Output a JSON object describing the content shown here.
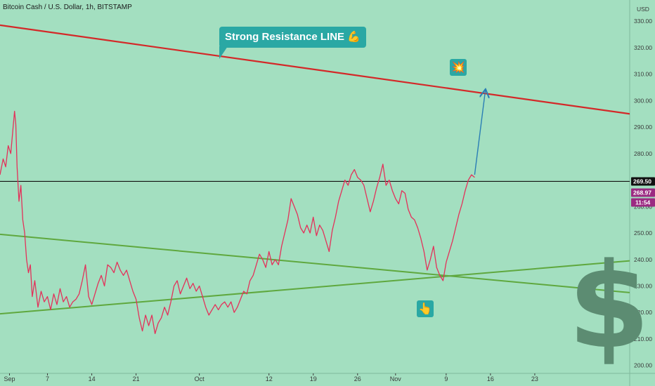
{
  "header": {
    "symbol_line": "Bitcoin Cash / U.S. Dollar, 1h, BITSTAMP"
  },
  "chart_data": {
    "type": "line",
    "title": "Bitcoin Cash / U.S. Dollar, 1h, BITSTAMP",
    "currency_label": "USD",
    "y_range": [
      197,
      338
    ],
    "y_ticks": [
      200,
      210,
      220,
      230,
      240,
      250,
      260,
      270,
      280,
      290,
      300,
      310,
      320,
      330
    ],
    "y_tick_labels": [
      "200.00",
      "210.00",
      "220.00",
      "230.00",
      "240.00",
      "250.00",
      "260.00",
      "270.00",
      "280.00",
      "290.00",
      "300.00",
      "310.00",
      "320.00",
      "330.00"
    ],
    "x_labels": [
      {
        "day": 0,
        "label": "Sep"
      },
      {
        "day": 6,
        "label": "7"
      },
      {
        "day": 13,
        "label": "14"
      },
      {
        "day": 20,
        "label": "21"
      },
      {
        "day": 30,
        "label": "Oct"
      },
      {
        "day": 41,
        "label": "12"
      },
      {
        "day": 48,
        "label": "19"
      },
      {
        "day": 55,
        "label": "26"
      },
      {
        "day": 61,
        "label": "Nov"
      },
      {
        "day": 69,
        "label": "9"
      },
      {
        "day": 76,
        "label": "16"
      },
      {
        "day": 83,
        "label": "23"
      }
    ],
    "x_range_days": [
      -1.5,
      98
    ],
    "price_series": {
      "name": "BCHUSD",
      "color": "#e3315a",
      "points": [
        [
          -1.5,
          272
        ],
        [
          -1,
          278
        ],
        [
          -0.6,
          275
        ],
        [
          -0.2,
          283
        ],
        [
          0.2,
          280
        ],
        [
          0.5,
          288
        ],
        [
          0.8,
          296
        ],
        [
          1.0,
          291
        ],
        [
          1.2,
          275
        ],
        [
          1.5,
          262
        ],
        [
          1.8,
          268
        ],
        [
          2.1,
          255
        ],
        [
          2.4,
          250
        ],
        [
          2.7,
          240
        ],
        [
          3.0,
          235
        ],
        [
          3.3,
          238
        ],
        [
          3.6,
          226
        ],
        [
          4.0,
          232
        ],
        [
          4.5,
          222
        ],
        [
          5.0,
          228
        ],
        [
          5.5,
          224
        ],
        [
          6.0,
          226
        ],
        [
          6.5,
          221
        ],
        [
          7.0,
          227
        ],
        [
          7.5,
          223
        ],
        [
          8.0,
          229
        ],
        [
          8.5,
          224
        ],
        [
          9.0,
          226
        ],
        [
          9.5,
          222
        ],
        [
          10.0,
          224
        ],
        [
          10.5,
          225
        ],
        [
          11.0,
          227
        ],
        [
          11.5,
          232
        ],
        [
          12.0,
          238
        ],
        [
          12.5,
          226
        ],
        [
          13.0,
          223
        ],
        [
          13.5,
          227
        ],
        [
          14.0,
          231
        ],
        [
          14.5,
          234
        ],
        [
          15.0,
          230
        ],
        [
          15.5,
          238
        ],
        [
          16.0,
          237
        ],
        [
          16.5,
          235
        ],
        [
          17.0,
          239
        ],
        [
          17.5,
          236
        ],
        [
          18.0,
          234
        ],
        [
          18.5,
          236
        ],
        [
          19.0,
          232
        ],
        [
          19.5,
          228
        ],
        [
          20.0,
          225
        ],
        [
          20.5,
          218
        ],
        [
          21.0,
          213
        ],
        [
          21.5,
          219
        ],
        [
          22.0,
          215
        ],
        [
          22.5,
          219
        ],
        [
          23.0,
          212
        ],
        [
          23.5,
          216
        ],
        [
          24.0,
          218
        ],
        [
          24.5,
          222
        ],
        [
          25.0,
          219
        ],
        [
          25.5,
          224
        ],
        [
          26.0,
          230
        ],
        [
          26.5,
          232
        ],
        [
          27.0,
          227
        ],
        [
          27.5,
          230
        ],
        [
          28.0,
          233
        ],
        [
          28.5,
          229
        ],
        [
          29.0,
          231
        ],
        [
          29.5,
          228
        ],
        [
          30.0,
          230
        ],
        [
          30.5,
          226
        ],
        [
          31.0,
          222
        ],
        [
          31.5,
          219
        ],
        [
          32.0,
          221
        ],
        [
          32.5,
          223
        ],
        [
          33.0,
          221
        ],
        [
          33.5,
          223
        ],
        [
          34.0,
          224
        ],
        [
          34.5,
          222
        ],
        [
          35.0,
          224
        ],
        [
          35.5,
          220
        ],
        [
          36.0,
          222
        ],
        [
          36.5,
          225
        ],
        [
          37.0,
          228
        ],
        [
          37.5,
          227
        ],
        [
          38.0,
          232
        ],
        [
          38.5,
          234
        ],
        [
          39.0,
          238
        ],
        [
          39.5,
          242
        ],
        [
          40.0,
          240
        ],
        [
          40.5,
          237
        ],
        [
          41.0,
          243
        ],
        [
          41.5,
          238
        ],
        [
          42.0,
          240
        ],
        [
          42.5,
          238
        ],
        [
          43.0,
          245
        ],
        [
          43.5,
          250
        ],
        [
          44.0,
          255
        ],
        [
          44.5,
          263
        ],
        [
          45.0,
          260
        ],
        [
          45.5,
          257
        ],
        [
          46.0,
          252
        ],
        [
          46.5,
          250
        ],
        [
          47.0,
          253
        ],
        [
          47.5,
          250
        ],
        [
          48.0,
          256
        ],
        [
          48.5,
          249
        ],
        [
          49.0,
          253
        ],
        [
          49.5,
          251
        ],
        [
          50.0,
          247
        ],
        [
          50.5,
          243
        ],
        [
          51.0,
          251
        ],
        [
          51.5,
          256
        ],
        [
          52.0,
          262
        ],
        [
          52.5,
          266
        ],
        [
          53.0,
          270
        ],
        [
          53.5,
          268
        ],
        [
          54.0,
          272
        ],
        [
          54.5,
          274
        ],
        [
          55.0,
          271
        ],
        [
          55.5,
          270
        ],
        [
          56.0,
          268
        ],
        [
          56.5,
          263
        ],
        [
          57.0,
          258
        ],
        [
          57.5,
          262
        ],
        [
          58.0,
          267
        ],
        [
          58.5,
          271
        ],
        [
          59.0,
          276
        ],
        [
          59.5,
          268
        ],
        [
          60.0,
          270
        ],
        [
          60.5,
          266
        ],
        [
          61.0,
          263
        ],
        [
          61.5,
          261
        ],
        [
          62.0,
          266
        ],
        [
          62.5,
          265
        ],
        [
          63.0,
          259
        ],
        [
          63.5,
          256
        ],
        [
          64.0,
          255
        ],
        [
          64.5,
          252
        ],
        [
          65.0,
          248
        ],
        [
          65.5,
          243
        ],
        [
          66.0,
          236
        ],
        [
          66.5,
          240
        ],
        [
          67.0,
          245
        ],
        [
          67.5,
          237
        ],
        [
          68.0,
          234
        ],
        [
          68.5,
          232
        ],
        [
          69.0,
          239
        ],
        [
          69.5,
          243
        ],
        [
          70.0,
          247
        ],
        [
          70.5,
          252
        ],
        [
          71.0,
          257
        ],
        [
          71.5,
          261
        ],
        [
          72.0,
          266
        ],
        [
          72.5,
          270
        ],
        [
          73.0,
          272
        ],
        [
          73.5,
          271
        ]
      ]
    },
    "horizontal_line": {
      "value": 269.5,
      "label": "269.50",
      "color": "#111111"
    },
    "last_price": {
      "value": 268.97,
      "label": "268.97",
      "color": "#9b2a82"
    },
    "countdown": {
      "label": "11:54",
      "color": "#9b2a82"
    },
    "resistance_line": {
      "color": "#d42828",
      "from": [
        -1.5,
        328.5
      ],
      "to": [
        98,
        295
      ]
    },
    "support_lines": [
      {
        "color": "#5fa83e",
        "from": [
          -1.5,
          249.5
        ],
        "to": [
          98,
          227.5
        ]
      },
      {
        "color": "#5fa83e",
        "from": [
          -1.5,
          219.5
        ],
        "to": [
          98,
          239.5
        ]
      }
    ],
    "projection_arrow": {
      "color": "#2a7eb5",
      "from": [
        73.5,
        272
      ],
      "to": [
        75.2,
        304
      ]
    },
    "annotation": {
      "text": "Strong Resistance LINE 💪"
    },
    "icons": {
      "explosion": "💥",
      "pointing": "👆",
      "dollar": "$"
    }
  }
}
